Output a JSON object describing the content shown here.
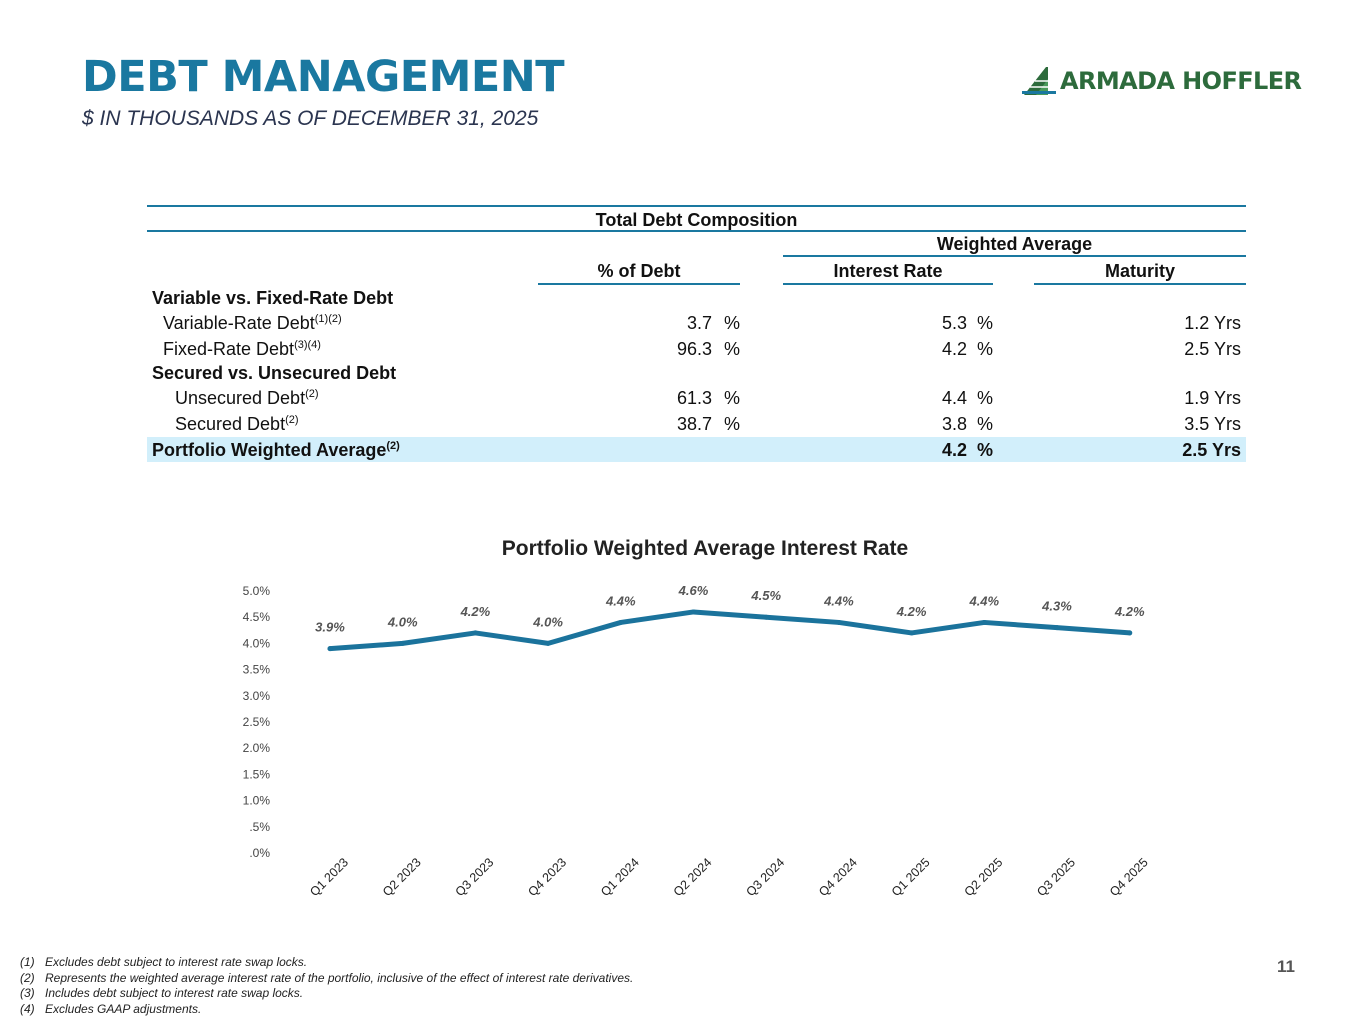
{
  "header": {
    "title": "DEBT MANAGEMENT",
    "subtitle": "$ IN THOUSANDS AS OF DECEMBER 31, 2025",
    "logo_text": "ARMADA HOFFLER"
  },
  "table": {
    "title": "Total Debt Composition",
    "group_header": "Weighted Average",
    "col_pct": "% of Debt",
    "col_rate": "Interest Rate",
    "col_maturity": "Maturity",
    "sections": [
      {
        "label": "Variable vs. Fixed-Rate Debt",
        "rows": [
          {
            "label": "Variable-Rate Debt",
            "sup": "(1)(2)",
            "pct": "3.7",
            "rate": "5.3",
            "maturity": "1.2 Yrs"
          },
          {
            "label": "Fixed-Rate Debt",
            "sup": "(3)(4)",
            "pct": "96.3",
            "rate": "4.2",
            "maturity": "2.5 Yrs"
          }
        ]
      },
      {
        "label": "Secured vs. Unsecured Debt",
        "rows": [
          {
            "label": "Unsecured Debt",
            "sup": "(2)",
            "pct": "61.3",
            "rate": "4.4",
            "maturity": "1.9 Yrs"
          },
          {
            "label": "Secured Debt",
            "sup": "(2)",
            "pct": "38.7",
            "rate": "3.8",
            "maturity": "3.5 Yrs"
          }
        ]
      }
    ],
    "total": {
      "label": "Portfolio Weighted Average",
      "sup": "(2)",
      "rate": "4.2",
      "maturity": "2.5 Yrs"
    },
    "pct_symbol": "%"
  },
  "chart_data": {
    "type": "line",
    "title": "Portfolio Weighted Average Interest Rate",
    "categories": [
      "Q1 2023",
      "Q2 2023",
      "Q3 2023",
      "Q4 2023",
      "Q1 2024",
      "Q2 2024",
      "Q3 2024",
      "Q4 2024",
      "Q1 2025",
      "Q2 2025",
      "Q3 2025",
      "Q4 2025"
    ],
    "series": [
      {
        "values": [
          3.9,
          4.0,
          4.2,
          4.0,
          4.4,
          4.6,
          4.5,
          4.4,
          4.2,
          4.4,
          4.3,
          4.2
        ]
      }
    ],
    "data_labels": [
      "3.9%",
      "4.0%",
      "4.2%",
      "4.0%",
      "4.4%",
      "4.6%",
      "4.5%",
      "4.4%",
      "4.2%",
      "4.4%",
      "4.3%",
      "4.2%"
    ],
    "y_ticks": [
      0,
      0.5,
      1.0,
      1.5,
      2.0,
      2.5,
      3.0,
      3.5,
      4.0,
      4.5,
      5.0
    ],
    "y_tick_labels": [
      ".0%",
      ".5%",
      "1.0%",
      "1.5%",
      "2.0%",
      "2.5%",
      "3.0%",
      "3.5%",
      "4.0%",
      "4.5%",
      "5.0%"
    ],
    "ylim": [
      0,
      5.0
    ],
    "grid": false,
    "line_color": "#1b739c"
  },
  "footnotes": [
    {
      "num": "(1)",
      "text": "Excludes debt subject to interest rate swap locks."
    },
    {
      "num": "(2)",
      "text": "Represents the weighted average interest rate of the portfolio, inclusive of the effect of interest rate derivatives."
    },
    {
      "num": "(3)",
      "text": "Includes debt subject to interest rate swap locks."
    },
    {
      "num": "(4)",
      "text": "Excludes GAAP adjustments."
    }
  ],
  "page_number": "11"
}
